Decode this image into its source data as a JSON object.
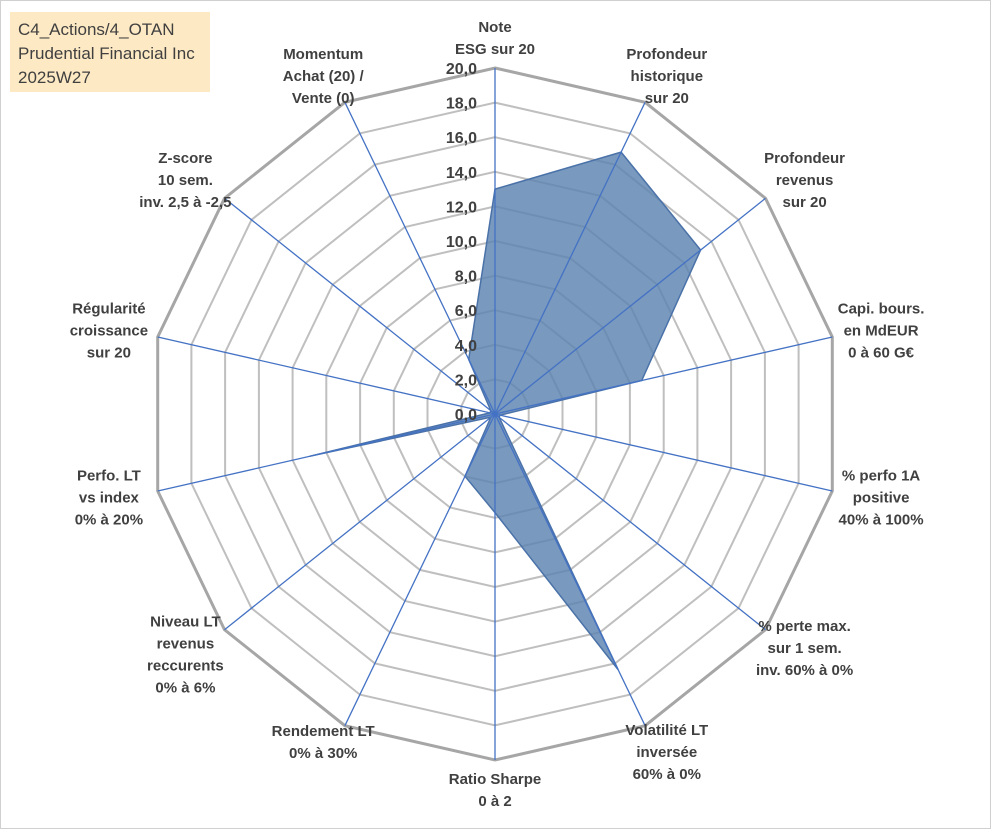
{
  "title_box": {
    "line1": "C4_Actions/4_OTAN",
    "line2": "Prudential Financial Inc",
    "line3": "2025W27"
  },
  "chart_data": {
    "type": "radar",
    "rmin": 0,
    "rmax": 20,
    "tick_step": 2,
    "ticks": [
      "0,0",
      "2,0",
      "4,0",
      "6,0",
      "8,0",
      "10,0",
      "12,0",
      "14,0",
      "16,0",
      "18,0",
      "20,0"
    ],
    "grid": true,
    "legend": "none",
    "colors": {
      "fill": "#5b82b0",
      "stroke": "#4a72a8",
      "spoke": "#4472c4",
      "ring": "#bfbfbf",
      "outer_ring": "#a6a6a6"
    },
    "axes": [
      {
        "label": [
          "Note",
          "ESG sur 20"
        ]
      },
      {
        "label": [
          "Profondeur",
          "historique",
          "sur 20"
        ]
      },
      {
        "label": [
          "Profondeur",
          "revenus",
          "sur 20"
        ]
      },
      {
        "label": [
          "Capi. bours.",
          "en MdEUR",
          "0 à 60 G€"
        ]
      },
      {
        "label": [
          "% perfo 1A",
          "positive",
          "40% à 100%"
        ]
      },
      {
        "label": [
          "% perte max.",
          "sur 1 sem.",
          "inv. 60% à 0%"
        ]
      },
      {
        "label": [
          "Volatilité LT",
          "inversée",
          "60% à 0%"
        ]
      },
      {
        "label": [
          "Ratio Sharpe",
          "0 à 2"
        ]
      },
      {
        "label": [
          "Rendement LT",
          "0% à 30%"
        ]
      },
      {
        "label": [
          "Niveau LT",
          "revenus",
          "reccurents",
          "0% à 6%"
        ]
      },
      {
        "label": [
          "Perfo. LT",
          "vs index",
          "0% à 20%"
        ]
      },
      {
        "label": [
          "Régularité",
          "croissance",
          "sur 20"
        ]
      },
      {
        "label": [
          "Z-score",
          "10 sem.",
          "inv. 2,5 à -2,5"
        ]
      },
      {
        "label": [
          "Momentum",
          "Achat (20) /",
          "Vente (0)"
        ]
      }
    ],
    "values": [
      13.0,
      16.8,
      15.2,
      8.7,
      0.3,
      0.3,
      16.4,
      5.7,
      4.0,
      0.3,
      11.0,
      0.3,
      0.3,
      3.5
    ]
  }
}
